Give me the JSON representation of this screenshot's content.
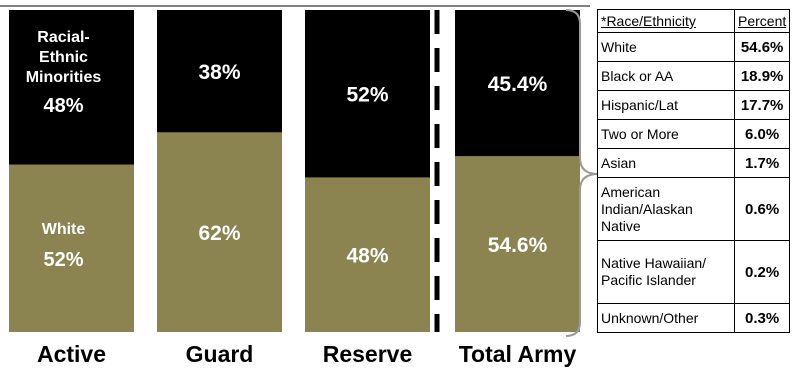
{
  "chart_data": {
    "type": "bar",
    "stacked": true,
    "categories": [
      "Active",
      "Guard",
      "Reserve",
      "Total Army"
    ],
    "series": [
      {
        "name": "White",
        "values": [
          52,
          62,
          48,
          54.6
        ],
        "labels": [
          "52%",
          "62%",
          "48%",
          "54.6%"
        ],
        "color": "#8b8350"
      },
      {
        "name": "Racial-Ethnic Minorities",
        "values": [
          48,
          38,
          52,
          45.4
        ],
        "labels": [
          "48%",
          "38%",
          "52%",
          "45.4%"
        ],
        "color": "#000000"
      }
    ],
    "annotations": {
      "active_top": [
        "Racial-",
        "Ethnic",
        "Minorities",
        "48%"
      ],
      "active_bottom": [
        "White",
        "52%"
      ]
    },
    "ylim": [
      0,
      100
    ]
  },
  "table": {
    "header_name": "*Race/Ethnicity",
    "header_pct": "Percent",
    "rows": [
      {
        "name": "White",
        "pct": "54.6%"
      },
      {
        "name": "Black or AA",
        "pct": "18.9%"
      },
      {
        "name": "Hispanic/Lat",
        "pct": "17.7%"
      },
      {
        "name": "Two or More",
        "pct": "6.0%"
      },
      {
        "name": "Asian",
        "pct": "1.7%"
      },
      {
        "name": "American Indian/Alaskan Native",
        "pct": "0.6%"
      },
      {
        "name": "Native Hawaiian/ Pacific Islander",
        "pct": "0.2%"
      },
      {
        "name": "Unknown/Other",
        "pct": "0.3%"
      }
    ]
  }
}
